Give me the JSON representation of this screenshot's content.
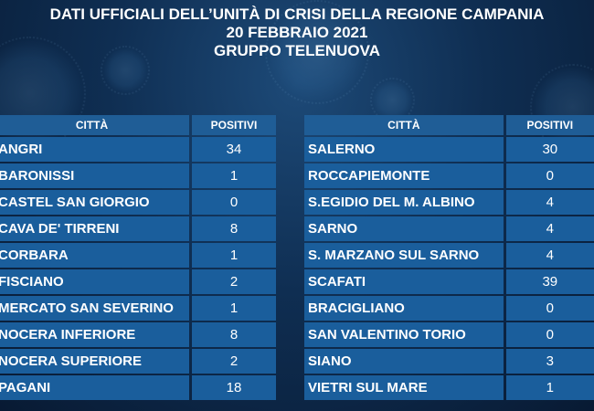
{
  "header": {
    "line1": "DATI UFFICIALI DELL’UNITÀ DI CRISI DELLA REGIONE CAMPANIA",
    "line2": "20 FEBBRAIO 2021",
    "line3": "GRUPPO TELENUOVA"
  },
  "left_table": {
    "col_city": "CITTÀ",
    "col_value": "POSITIVI",
    "rows": [
      {
        "city": "ANGRI",
        "value": "34"
      },
      {
        "city": "BARONISSI",
        "value": "1"
      },
      {
        "city": "CASTEL SAN GIORGIO",
        "value": "0"
      },
      {
        "city": "CAVA DE' TIRRENI",
        "value": "8"
      },
      {
        "city": "CORBARA",
        "value": "1"
      },
      {
        "city": "FISCIANO",
        "value": "2"
      },
      {
        "city": "MERCATO SAN SEVERINO",
        "value": "1"
      },
      {
        "city": "NOCERA INFERIORE",
        "value": "8"
      },
      {
        "city": "NOCERA SUPERIORE",
        "value": "2"
      },
      {
        "city": "PAGANI",
        "value": "18"
      }
    ]
  },
  "right_table": {
    "col_city": "CITTÀ",
    "col_value": "POSITIVI",
    "rows": [
      {
        "city": "SALERNO",
        "value": "30"
      },
      {
        "city": "ROCCAPIEMONTE",
        "value": "0"
      },
      {
        "city": "S.EGIDIO DEL M. ALBINO",
        "value": "4"
      },
      {
        "city": "SARNO",
        "value": "4"
      },
      {
        "city": "S. MARZANO SUL SARNO",
        "value": "4"
      },
      {
        "city": "SCAFATI",
        "value": "39"
      },
      {
        "city": "BRACIGLIANO",
        "value": "0"
      },
      {
        "city": "SAN VALENTINO TORIO",
        "value": "0"
      },
      {
        "city": "SIANO",
        "value": "3"
      },
      {
        "city": "VIETRI SUL MARE",
        "value": "1"
      }
    ]
  }
}
